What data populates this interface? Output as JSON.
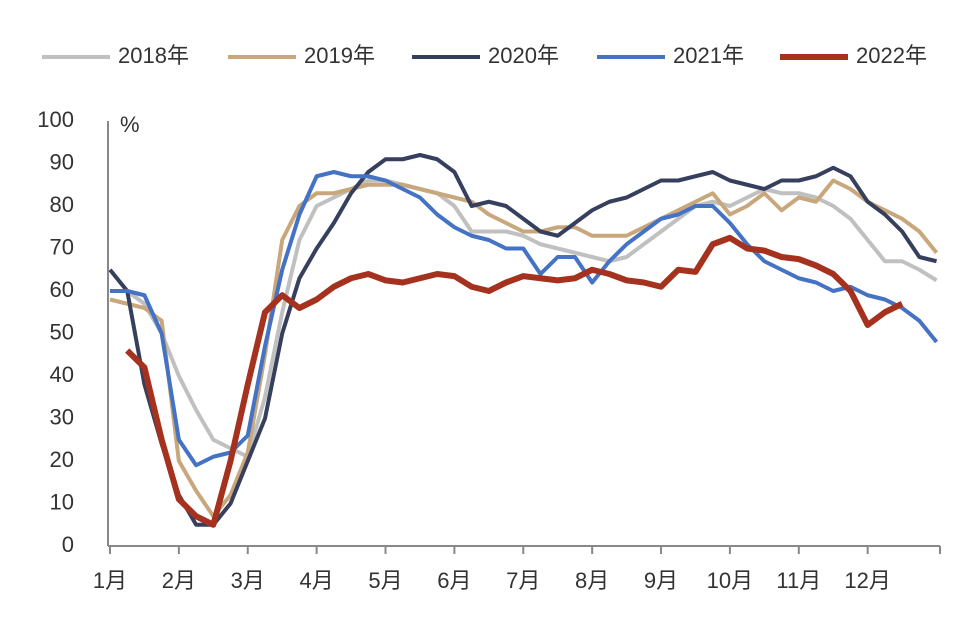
{
  "chart_data": {
    "type": "line",
    "y_unit": "%",
    "x": [
      0,
      0.25,
      0.5,
      0.75,
      1,
      1.25,
      1.5,
      1.75,
      2,
      2.25,
      2.5,
      2.75,
      3,
      3.25,
      3.5,
      3.75,
      4,
      4.25,
      4.5,
      4.75,
      5,
      5.25,
      5.5,
      5.75,
      6,
      6.25,
      6.5,
      6.75,
      7,
      7.25,
      7.5,
      7.75,
      8,
      8.25,
      8.5,
      8.75,
      9,
      9.25,
      9.5,
      9.75,
      10,
      10.25,
      10.5,
      10.75,
      11,
      11.25,
      11.5,
      11.75,
      12
    ],
    "xlim": [
      0,
      12.05
    ],
    "xticks": [
      {
        "value": 0,
        "label": "1月"
      },
      {
        "value": 1,
        "label": "2月"
      },
      {
        "value": 2,
        "label": "3月"
      },
      {
        "value": 3,
        "label": "4月"
      },
      {
        "value": 4,
        "label": "5月"
      },
      {
        "value": 5,
        "label": "6月"
      },
      {
        "value": 6,
        "label": "7月"
      },
      {
        "value": 7,
        "label": "8月"
      },
      {
        "value": 8,
        "label": "9月"
      },
      {
        "value": 9,
        "label": "10月"
      },
      {
        "value": 10,
        "label": "11月"
      },
      {
        "value": 11,
        "label": "12月"
      }
    ],
    "ylim": [
      0,
      100
    ],
    "yticks": [
      0,
      10,
      20,
      30,
      40,
      50,
      60,
      70,
      80,
      90,
      100
    ],
    "grid": false,
    "legend": "top",
    "series": [
      {
        "name": "2018年",
        "color": "#c0c0c0",
        "values": [
          60,
          60,
          57,
          50,
          40,
          32,
          25,
          23,
          21,
          35,
          55,
          72,
          80,
          82,
          84,
          86,
          86,
          85,
          84,
          83,
          80,
          74,
          74,
          74,
          73,
          71,
          70,
          69,
          68,
          67,
          68,
          71,
          74,
          77,
          80,
          81,
          80,
          82,
          84,
          83,
          83,
          82,
          80,
          77,
          72,
          67,
          67,
          65,
          62.5
        ]
      },
      {
        "name": "2019年",
        "color": "#c9a77c",
        "values": [
          58,
          57,
          56,
          53,
          20,
          13,
          7,
          12,
          22,
          45,
          72,
          80,
          83,
          83,
          84,
          85,
          85,
          85,
          84,
          83,
          82,
          81,
          78,
          76,
          74,
          74,
          75,
          75,
          73,
          73,
          73,
          75,
          77,
          79,
          81,
          83,
          78,
          80,
          83,
          79,
          82,
          81,
          86,
          84,
          81,
          79,
          77,
          74,
          69
        ]
      },
      {
        "name": "2020年",
        "color": "#373f5e",
        "values": [
          65,
          60,
          38,
          24,
          12,
          5,
          5,
          10,
          20,
          30,
          50,
          63,
          70,
          76,
          83,
          88,
          91,
          91,
          92,
          91,
          88,
          80,
          81,
          80,
          77,
          74,
          73,
          76,
          79,
          81,
          82,
          84,
          86,
          86,
          87,
          88,
          86,
          85,
          84,
          86,
          86,
          87,
          89,
          87,
          81,
          78,
          74,
          68,
          67
        ]
      },
      {
        "name": "2021年",
        "color": "#4472c4",
        "values": [
          60,
          60,
          59,
          50,
          25,
          19,
          21,
          22,
          26,
          47,
          65,
          78,
          87,
          88,
          87,
          87,
          86,
          84,
          82,
          78,
          75,
          73,
          72,
          70,
          70,
          64,
          68,
          68,
          62,
          67,
          71,
          74,
          77,
          78,
          80,
          80,
          76,
          71,
          67,
          65,
          63,
          62,
          60,
          61,
          59,
          58,
          56,
          53,
          48
        ]
      },
      {
        "name": "2022年",
        "color": "#a5321e",
        "values": [
          null,
          46,
          42,
          25,
          11,
          7,
          5,
          20,
          38,
          55,
          59,
          56,
          58,
          61,
          63,
          64,
          62.5,
          62,
          63,
          64,
          63.5,
          61,
          60,
          62,
          63.5,
          63,
          62.5,
          63,
          65,
          64,
          62.5,
          62,
          61,
          65,
          64.5,
          71,
          72.5,
          70,
          69.5,
          68,
          67.5,
          66,
          64,
          60,
          52,
          55,
          57,
          null,
          null
        ]
      }
    ]
  }
}
